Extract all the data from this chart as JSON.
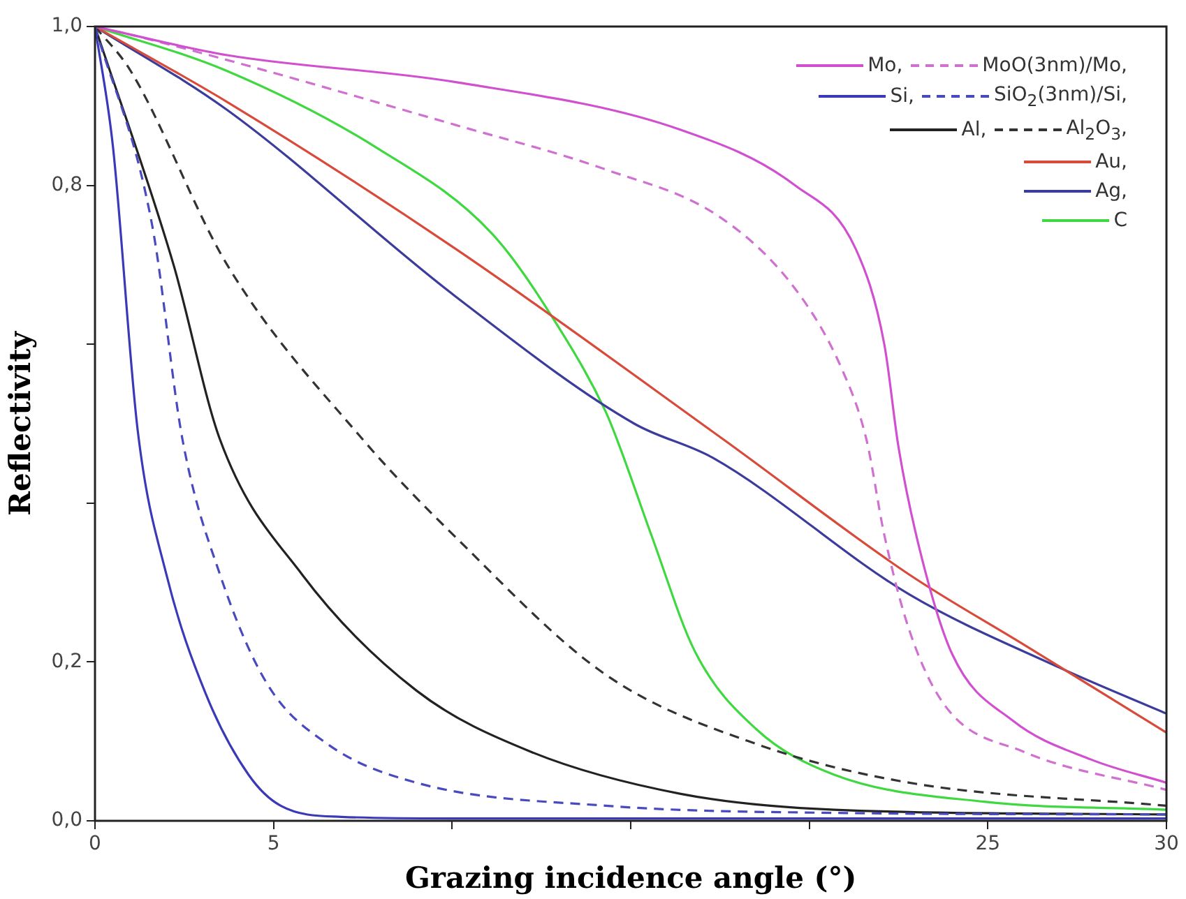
{
  "chart_data": {
    "type": "line",
    "xlabel": "Grazing incidence angle (°)",
    "ylabel": "Reflectivity",
    "xlim": [
      0,
      30
    ],
    "xticks": [
      0,
      5,
      {
        "value": 10,
        "label": null
      },
      {
        "value": 15,
        "label": null
      },
      {
        "value": 20,
        "label": null
      },
      25,
      30
    ],
    "ylim": [
      0,
      1
    ],
    "yticks": [
      {
        "value": 0,
        "label": "0,0"
      },
      {
        "value": 0.2,
        "label": "0,2"
      },
      {
        "value": 0.4,
        "label": null
      },
      {
        "value": 0.6,
        "label": null
      },
      {
        "value": 0.8,
        "label": "0,8"
      },
      {
        "value": 1,
        "label": "1,0"
      }
    ],
    "grid": false,
    "legend": "top right",
    "marker": "none",
    "series": [
      {
        "name": "Mo,",
        "color": "#d050d0",
        "line_style": "solid",
        "x": [
          0,
          3.7,
          10.1,
          16.4,
          19.6,
          21.3,
          22.1,
          22.5,
          23.1,
          24,
          25.7,
          27.9,
          30
        ],
        "values": [
          1,
          0.964,
          0.93,
          0.87,
          0.8,
          0.72,
          0.6,
          0.47,
          0.34,
          0.21,
          0.126,
          0.077,
          0.048
        ]
      },
      {
        "name": "MoO(3nm)/Mo,",
        "color": "#d070d0",
        "line_style": "dashed",
        "x": [
          0,
          1.6,
          10.1,
          14.3,
          17.5,
          19.6,
          20.9,
          21.6,
          22.1,
          22.8,
          23.8,
          26,
          30
        ],
        "values": [
          1,
          0.983,
          0.876,
          0.82,
          0.76,
          0.67,
          0.57,
          0.48,
          0.36,
          0.24,
          0.145,
          0.087,
          0.039
        ]
      },
      {
        "name": "Si,",
        "color": "#3a3ab8",
        "line_style": "solid",
        "x": [
          0,
          0.5,
          1.2,
          2,
          3.1,
          4.3,
          5.2,
          6.9,
          10,
          30
        ],
        "values": [
          1,
          0.85,
          0.49,
          0.31,
          0.16,
          0.058,
          0.019,
          0.005,
          0.003,
          0.003
        ]
      },
      {
        "name": "SiO$_{2}$(3nm)/Si,",
        "color": "#4a4ac0",
        "line_style": "dashed",
        "x": [
          0,
          1.6,
          2.45,
          3.5,
          4.8,
          6.5,
          9,
          14.3,
          20.7,
          30
        ],
        "values": [
          1,
          0.75,
          0.48,
          0.31,
          0.174,
          0.097,
          0.048,
          0.019,
          0.01,
          0.008
        ]
      },
      {
        "name": "Al,",
        "color": "#222222",
        "line_style": "solid",
        "x": [
          0,
          2.2,
          3.5,
          5.8,
          9,
          12.2,
          16.4,
          20.7,
          30
        ],
        "values": [
          1,
          0.7,
          0.48,
          0.31,
          0.164,
          0.087,
          0.034,
          0.014,
          0.008
        ]
      },
      {
        "name": "Al$_{2}$O$_{3}$,",
        "color": "#333333",
        "line_style": "dashed",
        "x": [
          0,
          1,
          3.7,
          7.5,
          10.1,
          14.3,
          18.5,
          22.8,
          30
        ],
        "values": [
          1,
          0.944,
          0.7,
          0.48,
          0.357,
          0.184,
          0.097,
          0.048,
          0.019
        ]
      },
      {
        "name": "Au,",
        "color": "#d84a3a",
        "line_style": "solid",
        "x": [
          0,
          3.7,
          10.1,
          17.6,
          22.8,
          26,
          30
        ],
        "values": [
          1,
          0.905,
          0.72,
          0.48,
          0.31,
          0.222,
          0.111
        ]
      },
      {
        "name": "Ag,",
        "color": "#3c3c9c",
        "line_style": "solid",
        "x": [
          0,
          3.7,
          10.1,
          15.1,
          17.3,
          22.8,
          27,
          30
        ],
        "values": [
          1,
          0.895,
          0.66,
          0.5,
          0.457,
          0.285,
          0.193,
          0.135
        ]
      },
      {
        "name": "C",
        "color": "#40d840",
        "line_style": "solid",
        "x": [
          0,
          3.7,
          7.9,
          11.1,
          13,
          14.3,
          14.7,
          15.6,
          16.8,
          18.5,
          20.7,
          24.9,
          30
        ],
        "values": [
          1,
          0.944,
          0.847,
          0.74,
          0.62,
          0.515,
          0.47,
          0.357,
          0.213,
          0.116,
          0.058,
          0.024,
          0.014
        ]
      }
    ]
  }
}
